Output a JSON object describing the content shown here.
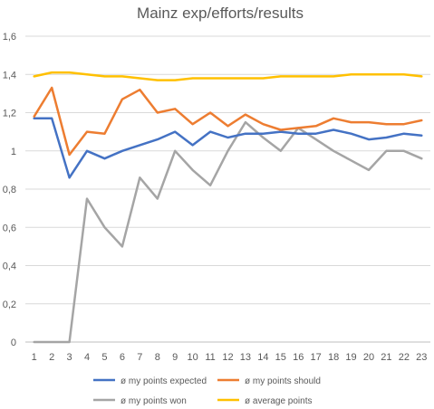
{
  "chart_data": {
    "type": "line",
    "title": "Mainz exp/efforts/results",
    "x": [
      1,
      2,
      3,
      4,
      5,
      6,
      7,
      8,
      9,
      10,
      11,
      12,
      13,
      14,
      15,
      16,
      17,
      18,
      19,
      20,
      21,
      22,
      23
    ],
    "x_tick_labels": [
      "1",
      "2",
      "3",
      "4",
      "5",
      "6",
      "7",
      "8",
      "9",
      "10",
      "11",
      "12",
      "13",
      "14",
      "15",
      "16",
      "17",
      "18",
      "19",
      "20",
      "21",
      "22",
      "23"
    ],
    "y_tick_labels": [
      "0",
      "0,2",
      "0,4",
      "0,6",
      "0,8",
      "1",
      "1,2",
      "1,4",
      "1,6"
    ],
    "ylim": [
      0,
      1.6
    ],
    "grid": true,
    "legend_position": "bottom",
    "series": [
      {
        "name": "ø my points expected",
        "color": "#4472C4",
        "values": [
          1.17,
          1.17,
          0.86,
          1.0,
          0.96,
          1.0,
          1.03,
          1.06,
          1.1,
          1.03,
          1.1,
          1.07,
          1.09,
          1.09,
          1.1,
          1.09,
          1.09,
          1.11,
          1.09,
          1.06,
          1.07,
          1.09,
          1.08
        ]
      },
      {
        "name": "ø my points should",
        "color": "#ED7D31",
        "values": [
          1.18,
          1.33,
          0.98,
          1.1,
          1.09,
          1.27,
          1.32,
          1.2,
          1.22,
          1.14,
          1.2,
          1.13,
          1.19,
          1.14,
          1.11,
          1.12,
          1.13,
          1.17,
          1.15,
          1.15,
          1.14,
          1.14,
          1.16
        ]
      },
      {
        "name": "ø my points won",
        "color": "#A5A5A5",
        "values": [
          0,
          0,
          0,
          0.75,
          0.6,
          0.5,
          0.86,
          0.75,
          1.0,
          0.9,
          0.82,
          1.0,
          1.15,
          1.07,
          1.0,
          1.12,
          1.06,
          1.0,
          0.95,
          0.9,
          1.0,
          1.0,
          0.96
        ]
      },
      {
        "name": "ø average points",
        "color": "#FFC000",
        "values": [
          1.39,
          1.41,
          1.41,
          1.4,
          1.39,
          1.39,
          1.38,
          1.37,
          1.37,
          1.38,
          1.38,
          1.38,
          1.38,
          1.38,
          1.39,
          1.39,
          1.39,
          1.39,
          1.4,
          1.4,
          1.4,
          1.4,
          1.39
        ]
      }
    ]
  }
}
